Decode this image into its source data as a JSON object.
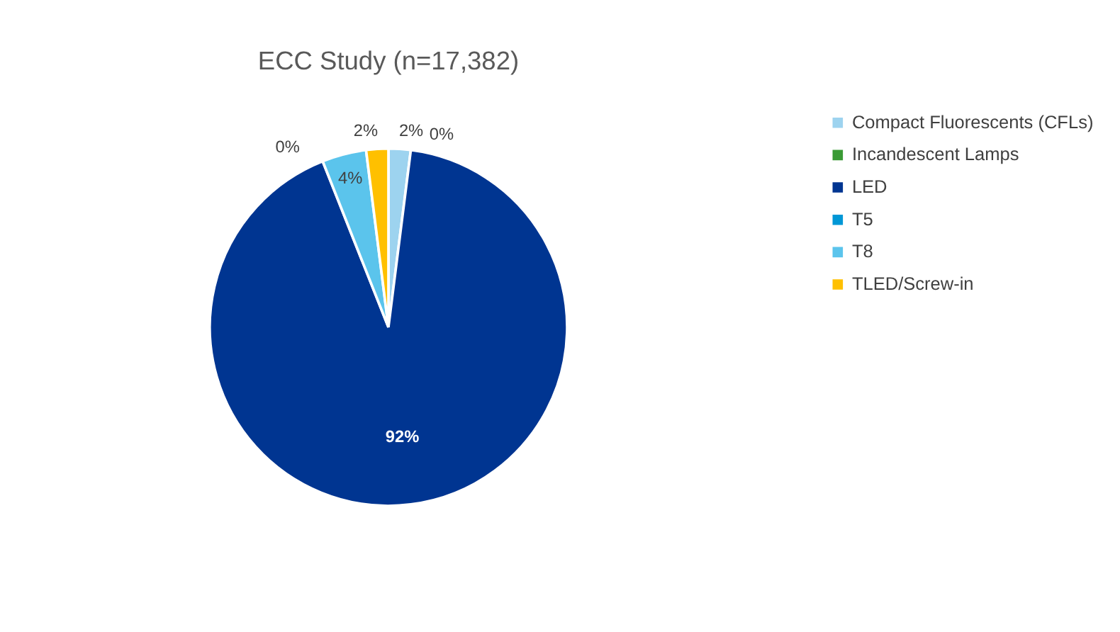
{
  "chart_data": {
    "type": "pie",
    "title": "ECC Study (n=17,382)",
    "categories": [
      "Compact Fluorescents (CFLs)",
      "Incandescent Lamps",
      "LED",
      "T5",
      "T8",
      "TLED/Screw-in"
    ],
    "values": [
      2,
      0,
      92,
      0,
      4,
      2
    ],
    "colors": [
      "#9dd3ef",
      "#3a9a35",
      "#003591",
      "#0097d6",
      "#5bc4ec",
      "#ffc000"
    ],
    "value_labels": [
      "2%",
      "0%",
      "92%",
      "0%",
      "4%",
      "2%"
    ],
    "legend": "right"
  }
}
